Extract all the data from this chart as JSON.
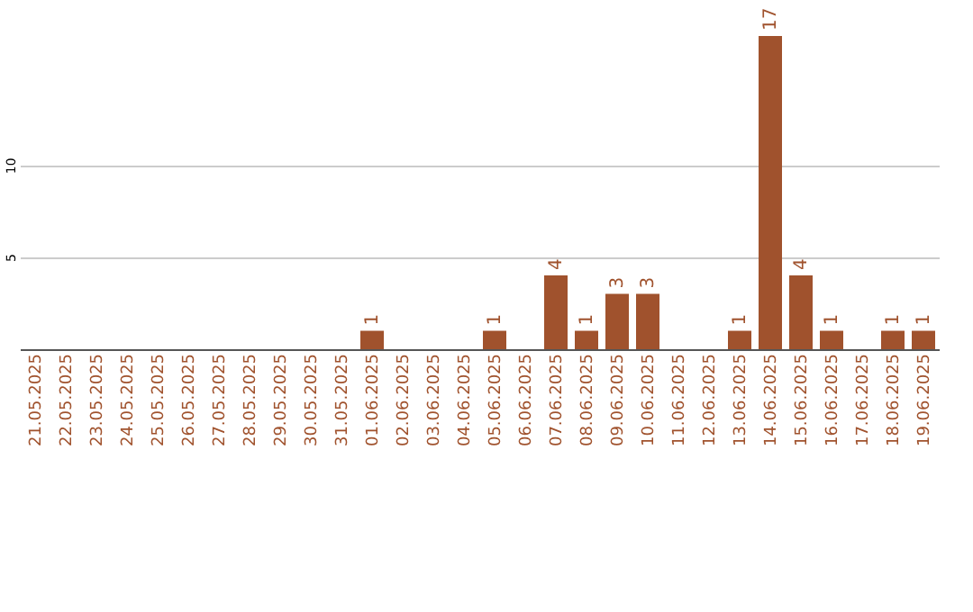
{
  "chart_data": {
    "type": "bar",
    "categories": [
      "21.05.2025",
      "22.05.2025",
      "23.05.2025",
      "24.05.2025",
      "25.05.2025",
      "26.05.2025",
      "27.05.2025",
      "28.05.2025",
      "29.05.2025",
      "30.05.2025",
      "31.05.2025",
      "01.06.2025",
      "02.06.2025",
      "03.06.2025",
      "04.06.2025",
      "05.06.2025",
      "06.06.2025",
      "07.06.2025",
      "08.06.2025",
      "09.06.2025",
      "10.06.2025",
      "11.06.2025",
      "12.06.2025",
      "13.06.2025",
      "14.06.2025",
      "15.06.2025",
      "16.06.2025",
      "17.06.2025",
      "18.06.2025",
      "19.06.2025"
    ],
    "values": [
      0,
      0,
      0,
      0,
      0,
      0,
      0,
      0,
      0,
      0,
      0,
      1,
      0,
      0,
      0,
      1,
      0,
      4,
      1,
      3,
      3,
      0,
      0,
      1,
      17,
      4,
      1,
      0,
      1,
      1
    ],
    "value_labels": [
      null,
      null,
      null,
      null,
      null,
      null,
      null,
      null,
      null,
      null,
      null,
      "1",
      null,
      null,
      null,
      "1",
      null,
      "4",
      "1",
      "3",
      "3",
      null,
      null,
      "1",
      "17",
      "4",
      "1",
      null,
      "1",
      "1"
    ],
    "color": "#a0522d",
    "ylim": [
      0,
      17
    ],
    "yticks": [
      5,
      10
    ],
    "grid": "y"
  }
}
